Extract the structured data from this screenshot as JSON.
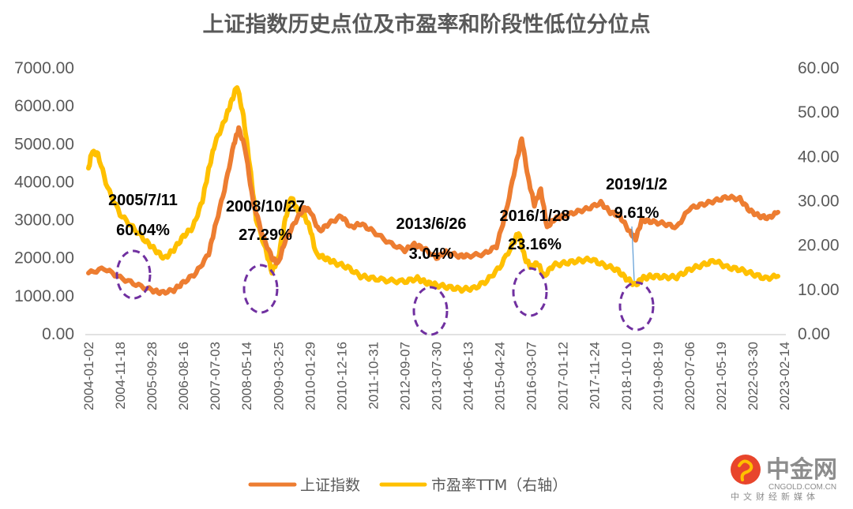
{
  "chart_data": {
    "type": "line",
    "title": "上证指数历史点位及市盈率和阶段性低位分位点",
    "x_ticks": [
      "2004-01-02",
      "2004-11-18",
      "2005-09-28",
      "2006-08-16",
      "2007-07-03",
      "2008-05-14",
      "2009-03-25",
      "2010-01-29",
      "2010-12-16",
      "2011-10-31",
      "2012-09-07",
      "2013-07-30",
      "2014-06-13",
      "2015-04-24",
      "2016-03-07",
      "2017-01-12",
      "2017-11-24",
      "2018-10-10",
      "2019-08-19",
      "2020-07-06",
      "2021-05-19",
      "2022-03-30",
      "2023-02-14"
    ],
    "y_left": {
      "ticks": [
        "0.00",
        "1000.00",
        "2000.00",
        "3000.00",
        "4000.00",
        "5000.00",
        "6000.00",
        "7000.00"
      ],
      "range": [
        0,
        7000
      ]
    },
    "y_right": {
      "ticks": [
        "0.00",
        "10.00",
        "20.00",
        "30.00",
        "40.00",
        "50.00",
        "60.00"
      ],
      "range": [
        0,
        60
      ]
    },
    "grid": false,
    "legend_position": "bottom",
    "series": [
      {
        "name": "上证指数",
        "axis": "left",
        "color": "#ED7D31",
        "points": [
          [
            0,
            1600
          ],
          [
            0.5,
            1720
          ],
          [
            1,
            1480
          ],
          [
            1.5,
            1300
          ],
          [
            2,
            1150
          ],
          [
            2.3,
            1080
          ],
          [
            2.7,
            1150
          ],
          [
            3,
            1350
          ],
          [
            3.4,
            1600
          ],
          [
            3.8,
            2100
          ],
          [
            4,
            2800
          ],
          [
            4.3,
            3800
          ],
          [
            4.6,
            5000
          ],
          [
            4.75,
            5400
          ],
          [
            4.95,
            4900
          ],
          [
            5.2,
            3500
          ],
          [
            5.5,
            2600
          ],
          [
            5.8,
            2000
          ],
          [
            6.0,
            1850
          ],
          [
            6.2,
            2400
          ],
          [
            6.5,
            2900
          ],
          [
            6.8,
            3300
          ],
          [
            7.0,
            3250
          ],
          [
            7.3,
            2700
          ],
          [
            7.6,
            2900
          ],
          [
            8.0,
            3100
          ],
          [
            8.3,
            2800
          ],
          [
            8.6,
            2900
          ],
          [
            9.0,
            2700
          ],
          [
            9.5,
            2400
          ],
          [
            10.0,
            2200
          ],
          [
            10.3,
            2350
          ],
          [
            10.6,
            2250
          ],
          [
            11.0,
            2000
          ],
          [
            11.3,
            2150
          ],
          [
            11.7,
            2050
          ],
          [
            12.0,
            2050
          ],
          [
            12.5,
            2100
          ],
          [
            12.9,
            2300
          ],
          [
            13.2,
            3200
          ],
          [
            13.5,
            4400
          ],
          [
            13.7,
            5150
          ],
          [
            13.9,
            4100
          ],
          [
            14.1,
            3400
          ],
          [
            14.3,
            3800
          ],
          [
            14.5,
            2800
          ],
          [
            14.7,
            3000
          ],
          [
            15.0,
            3100
          ],
          [
            15.4,
            3200
          ],
          [
            15.8,
            3300
          ],
          [
            16.2,
            3450
          ],
          [
            16.5,
            3200
          ],
          [
            16.8,
            3100
          ],
          [
            17.1,
            2700
          ],
          [
            17.3,
            2500
          ],
          [
            17.5,
            3000
          ],
          [
            17.8,
            2950
          ],
          [
            18.2,
            2900
          ],
          [
            18.6,
            2800
          ],
          [
            19.0,
            3300
          ],
          [
            19.4,
            3400
          ],
          [
            19.8,
            3500
          ],
          [
            20.2,
            3600
          ],
          [
            20.6,
            3550
          ],
          [
            20.9,
            3250
          ],
          [
            21.2,
            3100
          ],
          [
            21.5,
            3050
          ],
          [
            21.8,
            3200
          ]
        ]
      },
      {
        "name": "市盈率TTM（右轴）",
        "axis": "right",
        "color": "#FFC000",
        "points": [
          [
            0,
            37
          ],
          [
            0.1,
            41
          ],
          [
            0.3,
            40.5
          ],
          [
            0.6,
            33
          ],
          [
            1,
            27
          ],
          [
            1.4,
            24
          ],
          [
            1.8,
            21
          ],
          [
            2.1,
            19
          ],
          [
            2.4,
            17
          ],
          [
            2.7,
            19
          ],
          [
            3,
            22
          ],
          [
            3.3,
            24
          ],
          [
            3.6,
            30
          ],
          [
            3.8,
            37
          ],
          [
            4.0,
            43
          ],
          [
            4.3,
            48
          ],
          [
            4.5,
            52
          ],
          [
            4.7,
            56
          ],
          [
            4.9,
            49
          ],
          [
            5.1,
            38
          ],
          [
            5.3,
            26
          ],
          [
            5.6,
            19
          ],
          [
            5.8,
            14
          ],
          [
            6.0,
            17
          ],
          [
            6.2,
            25
          ],
          [
            6.4,
            31
          ],
          [
            6.6,
            28
          ],
          [
            6.8,
            27
          ],
          [
            7.0,
            24
          ],
          [
            7.2,
            18
          ],
          [
            7.5,
            17
          ],
          [
            7.8,
            16
          ],
          [
            8.2,
            15
          ],
          [
            8.6,
            13
          ],
          [
            9.0,
            12.5
          ],
          [
            9.5,
            12
          ],
          [
            10.0,
            11.8
          ],
          [
            10.4,
            12.5
          ],
          [
            10.7,
            11.5
          ],
          [
            11.0,
            11
          ],
          [
            11.4,
            10.5
          ],
          [
            11.8,
            10
          ],
          [
            12.2,
            10.3
          ],
          [
            12.6,
            12
          ],
          [
            13.0,
            15
          ],
          [
            13.4,
            20
          ],
          [
            13.6,
            23
          ],
          [
            13.8,
            17
          ],
          [
            14.0,
            15
          ],
          [
            14.2,
            16
          ],
          [
            14.4,
            13
          ],
          [
            14.7,
            15.5
          ],
          [
            15.1,
            16
          ],
          [
            15.5,
            16.5
          ],
          [
            15.9,
            16.8
          ],
          [
            16.3,
            15.5
          ],
          [
            16.7,
            14.5
          ],
          [
            17.0,
            12.5
          ],
          [
            17.3,
            11
          ],
          [
            17.5,
            12.5
          ],
          [
            17.8,
            13
          ],
          [
            18.2,
            12.8
          ],
          [
            18.6,
            12.8
          ],
          [
            19.0,
            14.5
          ],
          [
            19.4,
            15.5
          ],
          [
            19.8,
            16.5
          ],
          [
            20.2,
            15
          ],
          [
            20.6,
            14.5
          ],
          [
            21.0,
            13.5
          ],
          [
            21.4,
            12.5
          ],
          [
            21.8,
            13
          ]
        ]
      }
    ],
    "annotations": [
      {
        "date": "2005/7/11",
        "percentile": "60.04%"
      },
      {
        "date": "2008/10/27",
        "percentile": "27.29%"
      },
      {
        "date": "2013/6/26",
        "percentile": "3.04%"
      },
      {
        "date": "2016/1/28",
        "percentile": "23.16%"
      },
      {
        "date": "2019/1/2",
        "percentile": "9.61%"
      }
    ]
  },
  "watermark": {
    "name_cn": "中金网",
    "domain": "CNGOLD.COM.CN",
    "tagline": "中文财经新媒体"
  },
  "colors": {
    "index_line": "#ED7D31",
    "pe_line": "#FFC000",
    "circle": "#7030A0",
    "text": "#595959",
    "axis": "#D9D9D9"
  }
}
